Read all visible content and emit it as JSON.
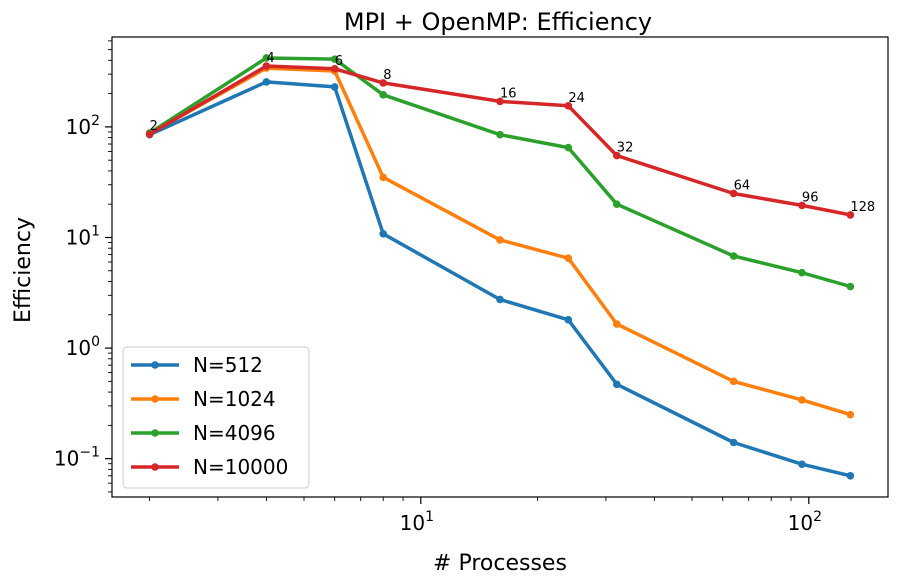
{
  "chart_data": {
    "type": "line",
    "title": "MPI + OpenMP: Efficiency",
    "xlabel": "# Processes",
    "ylabel": "Efficiency",
    "xscale": "log",
    "yscale": "log",
    "xlim": [
      1.6,
      160
    ],
    "ylim": [
      0.045,
      650
    ],
    "grid": false,
    "legend_position": "lower-left",
    "x": [
      2,
      4,
      6,
      8,
      16,
      24,
      32,
      64,
      96,
      128
    ],
    "point_labels": [
      "2",
      "4",
      "6",
      "8",
      "16",
      "24",
      "32",
      "64",
      "96",
      "128"
    ],
    "x_ticks": [
      {
        "value": 10,
        "base": "10",
        "exp": "1"
      },
      {
        "value": 100,
        "base": "10",
        "exp": "2"
      }
    ],
    "y_ticks": [
      {
        "value": 0.1,
        "base": "10",
        "exp": "−1"
      },
      {
        "value": 1,
        "base": "10",
        "exp": "0"
      },
      {
        "value": 10,
        "base": "10",
        "exp": "1"
      },
      {
        "value": 100,
        "base": "10",
        "exp": "2"
      }
    ],
    "series": [
      {
        "name": "N=512",
        "color": "#1f77b4",
        "values": [
          85,
          255,
          230,
          10.8,
          2.75,
          1.8,
          0.47,
          0.14,
          0.089,
          0.07
        ]
      },
      {
        "name": "N=1024",
        "color": "#ff7f0e",
        "values": [
          87,
          340,
          320,
          35,
          9.5,
          6.5,
          1.65,
          0.5,
          0.34,
          0.25
        ]
      },
      {
        "name": "N=4096",
        "color": "#2ca02c",
        "values": [
          88,
          420,
          410,
          195,
          85,
          65,
          20,
          6.8,
          4.8,
          3.6
        ]
      },
      {
        "name": "N=10000",
        "color": "#d62728",
        "values": [
          86,
          355,
          335,
          250,
          170,
          155,
          55,
          25,
          19.5,
          16
        ]
      }
    ]
  }
}
